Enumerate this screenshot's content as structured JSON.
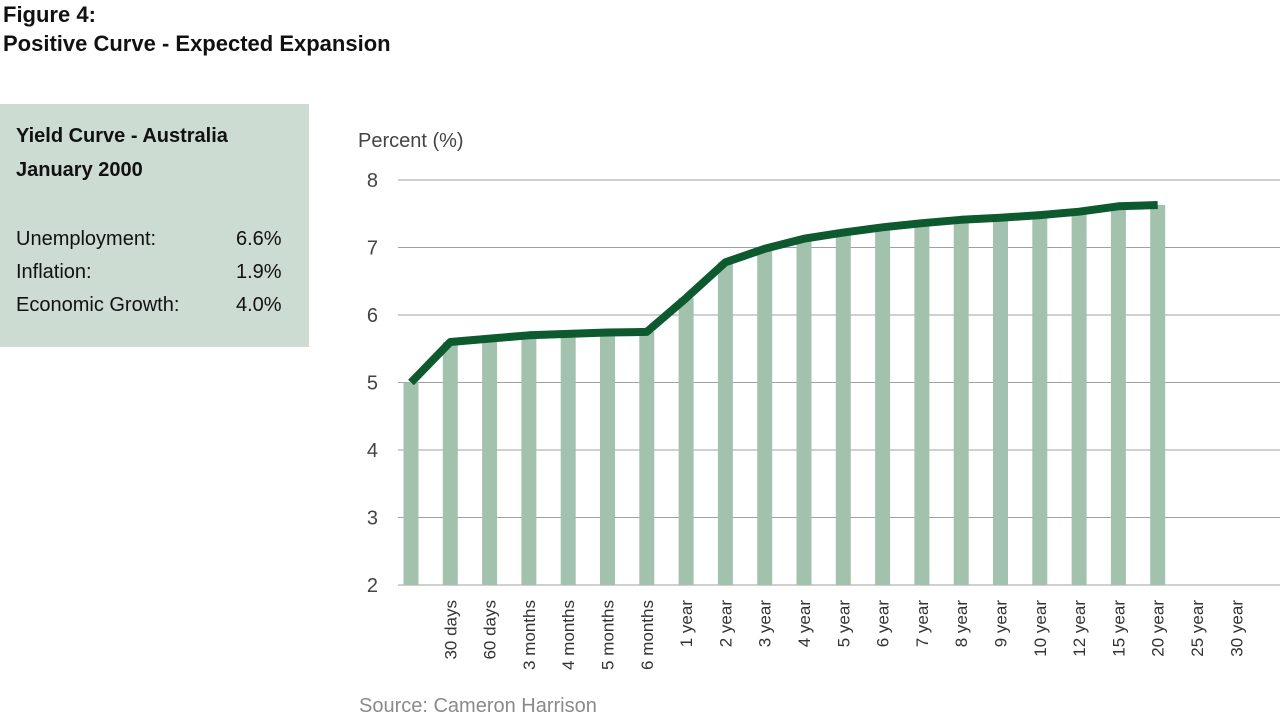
{
  "figure": {
    "label": "Figure 4:",
    "title": "Positive Curve - Expected Expansion"
  },
  "info_box": {
    "title_line1": "Yield Curve - Australia",
    "title_line2": "January 2000",
    "stats": [
      {
        "label": "Unemployment:",
        "value": "6.6%"
      },
      {
        "label": "Inflation:",
        "value": "1.9%"
      },
      {
        "label": "Economic Growth:",
        "value": "4.0%"
      }
    ],
    "background": "#ccdcd2"
  },
  "source": "Source: Cameron Harrison",
  "chart_data": {
    "type": "bar",
    "ylabel": "Percent (%)",
    "ylim": [
      2,
      8
    ],
    "yticks": [
      2,
      3,
      4,
      5,
      6,
      7,
      8
    ],
    "grid": true,
    "bar_color": "#a3c2ae",
    "line_color": "#0d5a2e",
    "categories": [
      "",
      "30 days",
      "60 days",
      "3 months",
      "4 months",
      "5 months",
      "6 months",
      "1 year",
      "2 year",
      "3 year",
      "4 year",
      "5 year",
      "6 year",
      "7 year",
      "8 year",
      "9 year",
      "10 year",
      "12 year",
      "15 year",
      "20 year",
      "25 year",
      "30 year"
    ],
    "values": [
      5.0,
      5.6,
      5.65,
      5.7,
      5.72,
      5.74,
      5.75,
      6.25,
      6.78,
      6.98,
      7.13,
      7.22,
      7.3,
      7.36,
      7.41,
      7.44,
      7.48,
      7.53,
      7.61,
      7.63,
      null,
      null
    ]
  }
}
